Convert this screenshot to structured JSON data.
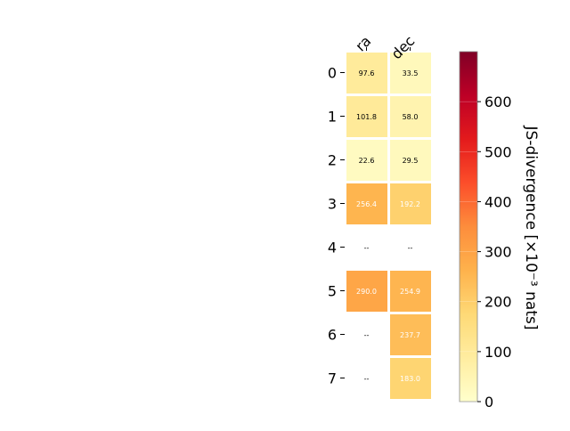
{
  "chart_data": {
    "type": "heatmap",
    "columns": [
      "ra",
      "dec"
    ],
    "rows": [
      "0",
      "1",
      "2",
      "3",
      "4",
      "5",
      "6",
      "7"
    ],
    "values": [
      [
        97.6,
        33.5
      ],
      [
        101.8,
        58.0
      ],
      [
        22.6,
        29.5
      ],
      [
        256.4,
        192.2
      ],
      [
        null,
        null
      ],
      [
        290.0,
        254.9
      ],
      [
        null,
        237.7
      ],
      [
        null,
        183.0
      ]
    ],
    "labels": [
      [
        "97.6",
        "33.5"
      ],
      [
        "101.8",
        "58.0"
      ],
      [
        "22.6",
        "29.5"
      ],
      [
        "256.4",
        "192.2"
      ],
      [
        "--",
        "--"
      ],
      [
        "290.0",
        "254.9"
      ],
      [
        "--",
        "237.7"
      ],
      [
        "--",
        "183.0"
      ]
    ],
    "colorbar": {
      "label": "JS-divergence [×10⁻³ nats]",
      "range": [
        0,
        700
      ],
      "ticks": [
        0,
        100,
        200,
        300,
        400,
        500,
        600
      ],
      "colormap": "YlOrRd"
    }
  }
}
